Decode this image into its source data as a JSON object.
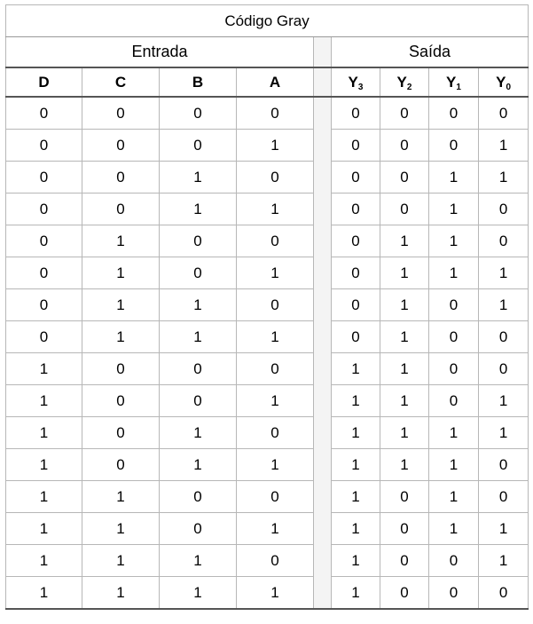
{
  "title": "Código Gray",
  "groups": {
    "input": "Entrada",
    "output": "Saída"
  },
  "input_headers": [
    "D",
    "C",
    "B",
    "A"
  ],
  "output_headers": [
    {
      "letter": "Y",
      "sub": "3"
    },
    {
      "letter": "Y",
      "sub": "2"
    },
    {
      "letter": "Y",
      "sub": "1"
    },
    {
      "letter": "Y",
      "sub": "0"
    }
  ],
  "rows": [
    {
      "in": [
        "0",
        "0",
        "0",
        "0"
      ],
      "out": [
        "0",
        "0",
        "0",
        "0"
      ]
    },
    {
      "in": [
        "0",
        "0",
        "0",
        "1"
      ],
      "out": [
        "0",
        "0",
        "0",
        "1"
      ]
    },
    {
      "in": [
        "0",
        "0",
        "1",
        "0"
      ],
      "out": [
        "0",
        "0",
        "1",
        "1"
      ]
    },
    {
      "in": [
        "0",
        "0",
        "1",
        "1"
      ],
      "out": [
        "0",
        "0",
        "1",
        "0"
      ]
    },
    {
      "in": [
        "0",
        "1",
        "0",
        "0"
      ],
      "out": [
        "0",
        "1",
        "1",
        "0"
      ]
    },
    {
      "in": [
        "0",
        "1",
        "0",
        "1"
      ],
      "out": [
        "0",
        "1",
        "1",
        "1"
      ]
    },
    {
      "in": [
        "0",
        "1",
        "1",
        "0"
      ],
      "out": [
        "0",
        "1",
        "0",
        "1"
      ]
    },
    {
      "in": [
        "0",
        "1",
        "1",
        "1"
      ],
      "out": [
        "0",
        "1",
        "0",
        "0"
      ]
    },
    {
      "in": [
        "1",
        "0",
        "0",
        "0"
      ],
      "out": [
        "1",
        "1",
        "0",
        "0"
      ]
    },
    {
      "in": [
        "1",
        "0",
        "0",
        "1"
      ],
      "out": [
        "1",
        "1",
        "0",
        "1"
      ]
    },
    {
      "in": [
        "1",
        "0",
        "1",
        "0"
      ],
      "out": [
        "1",
        "1",
        "1",
        "1"
      ]
    },
    {
      "in": [
        "1",
        "0",
        "1",
        "1"
      ],
      "out": [
        "1",
        "1",
        "1",
        "0"
      ]
    },
    {
      "in": [
        "1",
        "1",
        "0",
        "0"
      ],
      "out": [
        "1",
        "0",
        "1",
        "0"
      ]
    },
    {
      "in": [
        "1",
        "1",
        "0",
        "1"
      ],
      "out": [
        "1",
        "0",
        "1",
        "1"
      ]
    },
    {
      "in": [
        "1",
        "1",
        "1",
        "0"
      ],
      "out": [
        "1",
        "0",
        "0",
        "1"
      ]
    },
    {
      "in": [
        "1",
        "1",
        "1",
        "1"
      ],
      "out": [
        "1",
        "0",
        "0",
        "0"
      ]
    }
  ]
}
